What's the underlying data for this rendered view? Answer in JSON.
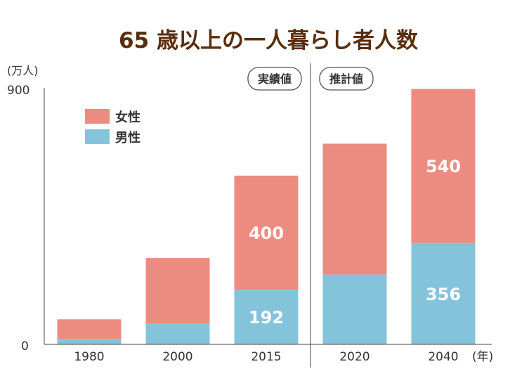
{
  "chart_data": {
    "type": "bar",
    "stacked": true,
    "title": "65 歳以上の一人暮らし者人数",
    "ylabel": "(万人)",
    "xunit": "(年)",
    "ylim": [
      0,
      900
    ],
    "yticks": [
      "900",
      "0"
    ],
    "categories": [
      "1980",
      "2000",
      "2015",
      "2020",
      "2040"
    ],
    "series": [
      {
        "name": "男性",
        "color": "#84c4db",
        "values": [
          19,
          74,
          192,
          245,
          356
        ],
        "labels": [
          "",
          "",
          "192",
          "",
          "356"
        ]
      },
      {
        "name": "女性",
        "color": "#ec8c80",
        "values": [
          69,
          229,
          400,
          459,
          540
        ],
        "labels": [
          "",
          "",
          "400",
          "",
          "540"
        ]
      }
    ],
    "sections": [
      {
        "label": "実績値",
        "categories": [
          "1980",
          "2000",
          "2015"
        ]
      },
      {
        "label": "推計値",
        "categories": [
          "2020",
          "2040"
        ]
      }
    ],
    "legend": {
      "position": "top-left",
      "order": [
        "女性",
        "男性"
      ]
    },
    "grid": false
  }
}
